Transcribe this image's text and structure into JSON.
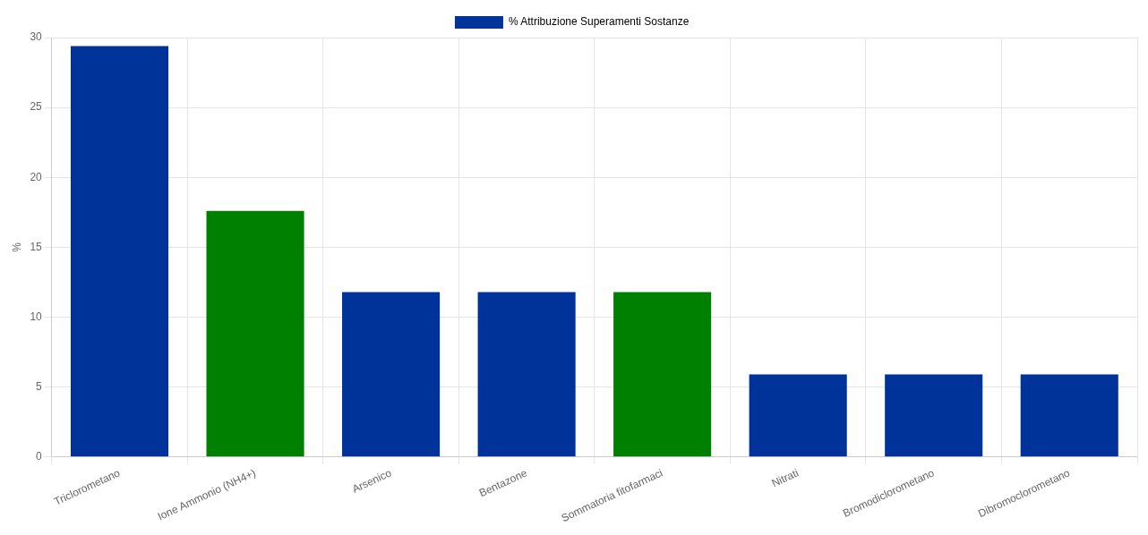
{
  "chart_data": {
    "type": "bar",
    "ylabel": "%",
    "categories": [
      "Triclorometano",
      "Ione Ammonio (NH4+)",
      "Arsenico",
      "Bentazone",
      "Sommatoria fitofarmaci",
      "Nitrati",
      "Bromodiclorometano",
      "Dibromoclorometano"
    ],
    "series": [
      {
        "name": "% Attribuzione Superamenti Sostanze",
        "color": "#003399",
        "colors": [
          "#003399",
          "#008000",
          "#003399",
          "#003399",
          "#008000",
          "#003399",
          "#003399",
          "#003399"
        ],
        "values": [
          29.4,
          17.6,
          11.8,
          11.8,
          11.8,
          5.9,
          5.9,
          5.9
        ]
      }
    ],
    "ylim": [
      0,
      30
    ],
    "yticks": [
      0,
      5,
      10,
      15,
      20,
      25,
      30
    ],
    "grid": true,
    "legend": "top"
  }
}
